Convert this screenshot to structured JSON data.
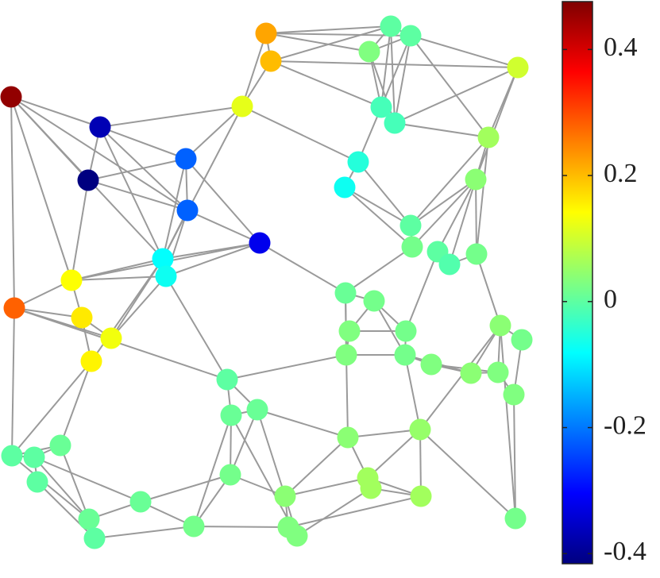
{
  "chart_data": {
    "type": "graph",
    "xlim": [
      0,
      670
    ],
    "ylim": [
      0,
      700
    ],
    "nodes": {
      "x": [
        14,
        126,
        111,
        234,
        236,
        327,
        305,
        335,
        341,
        205,
        209,
        90,
        18,
        103,
        140,
        115,
        492,
        517,
        465,
        652,
        480,
        497,
        615,
        451,
        434,
        599,
        517,
        519,
        551,
        566,
        600,
        435,
        471,
        440,
        511,
        436,
        510,
        543,
        630,
        657,
        593,
        627,
        647,
        286,
        291,
        324,
        438,
        529,
        15,
        43,
        76,
        47,
        290,
        463,
        467,
        530,
        177,
        359,
        112,
        119,
        244,
        363,
        374,
        649
      ],
      "y": [
        122,
        160,
        227,
        200,
        265,
        306,
        134,
        42,
        77,
        326,
        348,
        353,
        388,
        400,
        426,
        455,
        33,
        45,
        65,
        85,
        135,
        155,
        173,
        204,
        236,
        226,
        284,
        311,
        317,
        333,
        320,
        369,
        379,
        417,
        417,
        447,
        447,
        459,
        410,
        428,
        470,
        469,
        497,
        478,
        523,
        516,
        551,
        541,
        574,
        576,
        561,
        607,
        598,
        602,
        615,
        625,
        632,
        625,
        654,
        678,
        663,
        664,
        675,
        653
      ],
      "values": [
        0.46,
        -0.37,
        -0.42,
        -0.22,
        -0.22,
        -0.32,
        0.12,
        0.22,
        0.2,
        -0.08,
        -0.07,
        0.14,
        0.28,
        0.16,
        0.13,
        0.15,
        0.0,
        0.0,
        0.03,
        0.1,
        -0.02,
        -0.02,
        0.06,
        -0.05,
        -0.07,
        0.04,
        0.0,
        0.02,
        0.0,
        -0.01,
        0.02,
        0.01,
        0.02,
        0.03,
        0.02,
        0.03,
        0.02,
        0.03,
        0.04,
        0.02,
        0.04,
        0.03,
        0.03,
        0.0,
        0.01,
        0.01,
        0.04,
        0.05,
        0.0,
        0.0,
        0.01,
        0.0,
        0.02,
        0.06,
        0.06,
        0.06,
        0.01,
        0.04,
        0.01,
        0.0,
        0.02,
        0.03,
        0.03,
        0.02
      ]
    },
    "edges": [
      [
        0,
        1
      ],
      [
        0,
        2
      ],
      [
        0,
        11
      ],
      [
        0,
        12
      ],
      [
        0,
        4
      ],
      [
        1,
        2
      ],
      [
        1,
        3
      ],
      [
        1,
        4
      ],
      [
        1,
        6
      ],
      [
        1,
        9
      ],
      [
        2,
        3
      ],
      [
        2,
        4
      ],
      [
        2,
        11
      ],
      [
        3,
        4
      ],
      [
        3,
        6
      ],
      [
        3,
        9
      ],
      [
        4,
        9
      ],
      [
        4,
        10
      ],
      [
        4,
        5
      ],
      [
        3,
        5
      ],
      [
        5,
        9
      ],
      [
        5,
        11
      ],
      [
        5,
        31
      ],
      [
        6,
        7
      ],
      [
        6,
        8
      ],
      [
        6,
        23
      ],
      [
        6,
        9
      ],
      [
        7,
        8
      ],
      [
        7,
        16
      ],
      [
        7,
        17
      ],
      [
        7,
        18
      ],
      [
        8,
        19
      ],
      [
        8,
        20
      ],
      [
        8,
        16
      ],
      [
        16,
        17
      ],
      [
        16,
        18
      ],
      [
        16,
        20
      ],
      [
        16,
        21
      ],
      [
        17,
        18
      ],
      [
        17,
        20
      ],
      [
        17,
        21
      ],
      [
        17,
        22
      ],
      [
        17,
        19
      ],
      [
        18,
        20
      ],
      [
        18,
        21
      ],
      [
        19,
        21
      ],
      [
        19,
        22
      ],
      [
        19,
        25
      ],
      [
        20,
        21
      ],
      [
        20,
        23
      ],
      [
        21,
        22
      ],
      [
        22,
        25
      ],
      [
        22,
        26
      ],
      [
        22,
        30
      ],
      [
        23,
        24
      ],
      [
        23,
        26
      ],
      [
        24,
        26
      ],
      [
        24,
        27
      ],
      [
        25,
        26
      ],
      [
        25,
        27
      ],
      [
        25,
        28
      ],
      [
        25,
        29
      ],
      [
        25,
        30
      ],
      [
        26,
        27
      ],
      [
        27,
        31
      ],
      [
        28,
        29
      ],
      [
        29,
        30
      ],
      [
        30,
        38
      ],
      [
        28,
        34
      ],
      [
        31,
        32
      ],
      [
        32,
        33
      ],
      [
        32,
        34
      ],
      [
        32,
        36
      ],
      [
        31,
        35
      ],
      [
        33,
        34
      ],
      [
        33,
        35
      ],
      [
        34,
        36
      ],
      [
        35,
        36
      ],
      [
        35,
        43
      ],
      [
        35,
        46
      ],
      [
        36,
        37
      ],
      [
        36,
        40
      ],
      [
        36,
        47
      ],
      [
        37,
        40
      ],
      [
        37,
        41
      ],
      [
        38,
        39
      ],
      [
        38,
        41
      ],
      [
        38,
        40
      ],
      [
        39,
        42
      ],
      [
        40,
        41
      ],
      [
        41,
        42
      ],
      [
        38,
        47
      ],
      [
        38,
        63
      ],
      [
        42,
        63
      ],
      [
        47,
        63
      ],
      [
        46,
        47
      ],
      [
        46,
        53
      ],
      [
        47,
        53
      ],
      [
        47,
        55
      ],
      [
        46,
        45
      ],
      [
        43,
        44
      ],
      [
        43,
        45
      ],
      [
        43,
        10
      ],
      [
        43,
        12
      ],
      [
        44,
        45
      ],
      [
        44,
        52
      ],
      [
        44,
        60
      ],
      [
        45,
        52
      ],
      [
        45,
        57
      ],
      [
        52,
        57
      ],
      [
        52,
        60
      ],
      [
        53,
        54
      ],
      [
        53,
        57
      ],
      [
        54,
        55
      ],
      [
        54,
        62
      ],
      [
        55,
        61
      ],
      [
        57,
        61
      ],
      [
        57,
        62
      ],
      [
        61,
        62
      ],
      [
        60,
        56
      ],
      [
        60,
        61
      ],
      [
        56,
        58
      ],
      [
        56,
        49
      ],
      [
        56,
        52
      ],
      [
        58,
        59
      ],
      [
        58,
        48
      ],
      [
        59,
        60
      ],
      [
        59,
        51
      ],
      [
        48,
        49
      ],
      [
        48,
        50
      ],
      [
        49,
        50
      ],
      [
        49,
        51
      ],
      [
        49,
        58
      ],
      [
        50,
        15
      ],
      [
        50,
        58
      ],
      [
        48,
        15
      ],
      [
        48,
        12
      ],
      [
        11,
        12
      ],
      [
        11,
        13
      ],
      [
        11,
        10
      ],
      [
        12,
        13
      ],
      [
        12,
        14
      ],
      [
        13,
        14
      ],
      [
        13,
        15
      ],
      [
        14,
        9
      ],
      [
        15,
        9
      ],
      [
        14,
        10
      ],
      [
        9,
        10
      ],
      [
        10,
        5
      ],
      [
        35,
        31
      ],
      [
        46,
        57
      ],
      [
        53,
        55
      ],
      [
        44,
        62
      ],
      [
        0,
        9
      ],
      [
        9,
        11
      ]
    ],
    "colormap": "jet",
    "clim": [
      -0.416,
      0.476
    ],
    "cticks": [
      -0.4,
      -0.2,
      0,
      0.2,
      0.4
    ]
  }
}
